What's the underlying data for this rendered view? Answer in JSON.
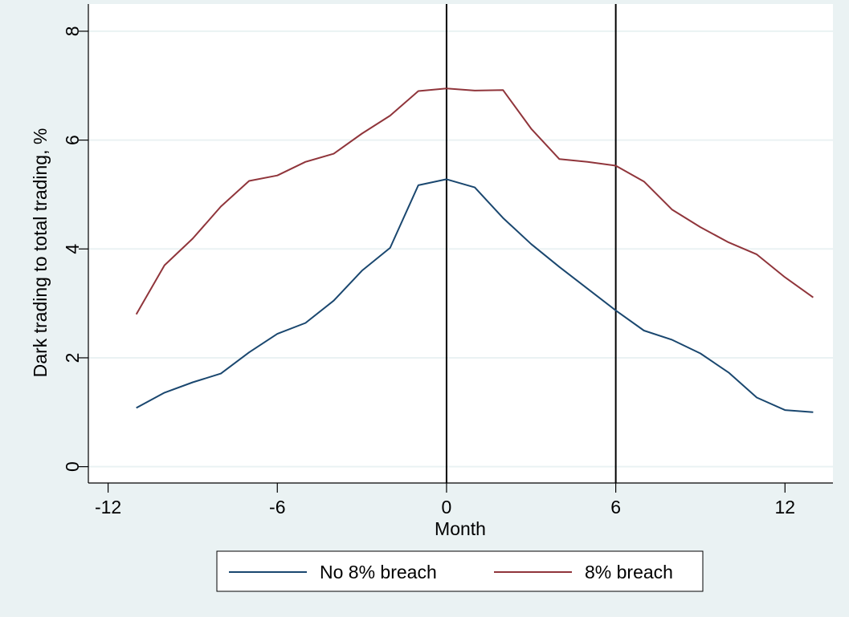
{
  "chart_data": {
    "type": "line",
    "title": "",
    "xlabel": "Month",
    "ylabel": "Dark trading to total trading, %",
    "xlim": [
      -12.7,
      13.7
    ],
    "ylim": [
      -0.3,
      8.5
    ],
    "xticks": [
      -12,
      -6,
      0,
      6,
      12
    ],
    "xtick_labels": [
      "-12",
      "-6",
      "0",
      "6",
      "12"
    ],
    "yticks": [
      0,
      2,
      4,
      6,
      8
    ],
    "ytick_labels": [
      "0",
      "2",
      "4",
      "6",
      "8"
    ],
    "grid": true,
    "vlines": [
      0,
      6
    ],
    "legend_position": "bottom",
    "x": [
      -11,
      -10,
      -9,
      -8,
      -7,
      -6,
      -5,
      -4,
      -3,
      -2,
      -1,
      0,
      1,
      2,
      3,
      4,
      5,
      6,
      7,
      8,
      9,
      10,
      11,
      12,
      13
    ],
    "series": [
      {
        "name": "No 8% breach",
        "color": "#1a476f",
        "values": [
          1.08,
          1.36,
          1.55,
          1.71,
          2.1,
          2.44,
          2.64,
          3.05,
          3.6,
          4.02,
          5.17,
          5.28,
          5.13,
          4.57,
          4.09,
          3.67,
          3.27,
          2.87,
          2.5,
          2.33,
          2.08,
          1.73,
          1.27,
          1.04,
          1.0
        ]
      },
      {
        "name": "8% breach",
        "color": "#90353b",
        "values": [
          2.8,
          3.7,
          4.19,
          4.78,
          5.25,
          5.35,
          5.6,
          5.75,
          6.12,
          6.45,
          6.9,
          6.95,
          6.91,
          6.92,
          6.21,
          5.65,
          5.6,
          5.53,
          5.24,
          4.72,
          4.4,
          4.12,
          3.9,
          3.48,
          3.11
        ]
      }
    ]
  },
  "colors": {
    "background": "#eaf2f3",
    "plot_background": "#ffffff",
    "grid": "#eaf2f3",
    "vline": "#000000"
  }
}
